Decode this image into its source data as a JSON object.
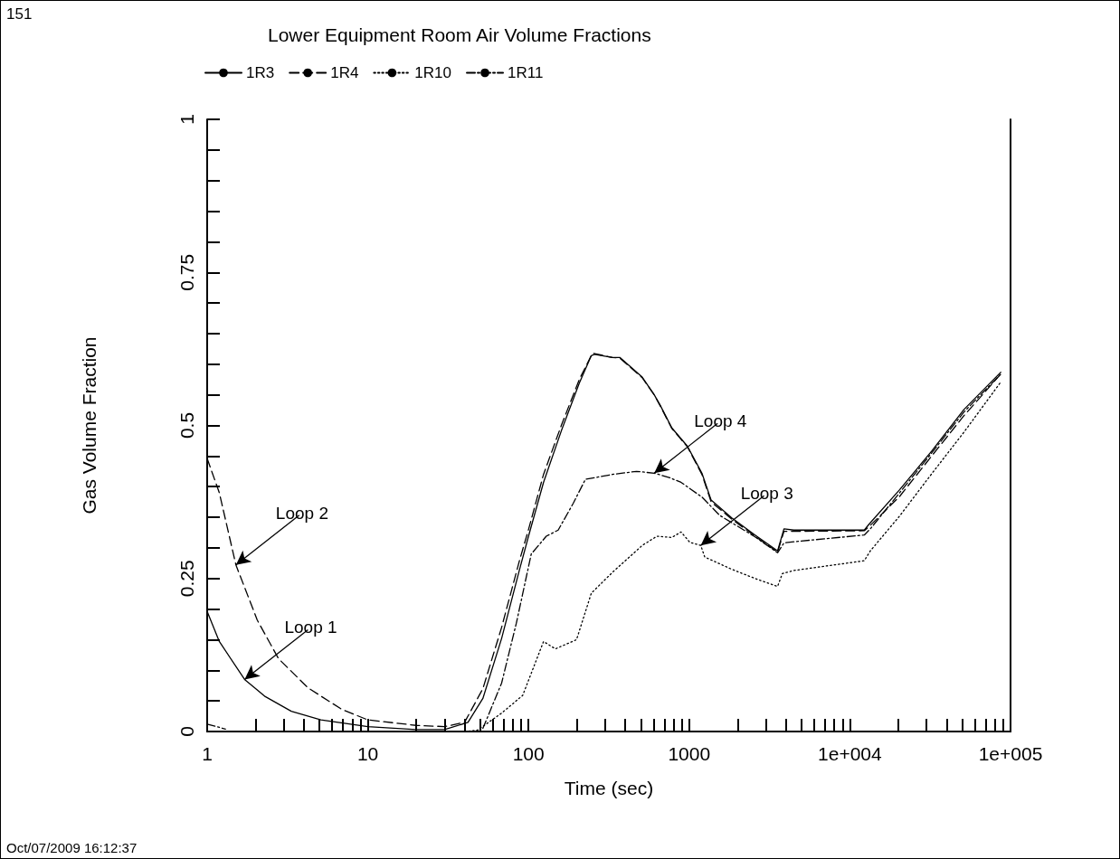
{
  "chart_data": {
    "type": "line",
    "title": "Lower Equipment Room Air Volume Fractions",
    "xlabel": "Time (sec)",
    "ylabel": "Gas Volume Fraction",
    "log": "x",
    "grid": false,
    "legend": "top left",
    "marker": "none",
    "xlim": [
      1,
      100000
    ],
    "xticks": [
      1,
      {
        "value": 2,
        "label": null
      },
      {
        "value": 3,
        "label": null
      },
      {
        "value": 4,
        "label": null
      },
      {
        "value": 5,
        "label": null
      },
      {
        "value": 6,
        "label": null
      },
      {
        "value": 7,
        "label": null
      },
      {
        "value": 8,
        "label": null
      },
      {
        "value": 9,
        "label": null
      },
      10,
      {
        "value": 20,
        "label": null
      },
      {
        "value": 30,
        "label": null
      },
      {
        "value": 40,
        "label": null
      },
      {
        "value": 50,
        "label": null
      },
      {
        "value": 60,
        "label": null
      },
      {
        "value": 70,
        "label": null
      },
      {
        "value": 80,
        "label": null
      },
      {
        "value": 90,
        "label": null
      },
      100,
      {
        "value": 200,
        "label": null
      },
      {
        "value": 300,
        "label": null
      },
      {
        "value": 400,
        "label": null
      },
      {
        "value": 500,
        "label": null
      },
      {
        "value": 600,
        "label": null
      },
      {
        "value": 700,
        "label": null
      },
      {
        "value": 800,
        "label": null
      },
      {
        "value": 900,
        "label": null
      },
      1000,
      {
        "value": 2000,
        "label": null
      },
      {
        "value": 3000,
        "label": null
      },
      {
        "value": 4000,
        "label": null
      },
      {
        "value": 5000,
        "label": null
      },
      {
        "value": 6000,
        "label": null
      },
      {
        "value": 7000,
        "label": null
      },
      {
        "value": 8000,
        "label": null
      },
      {
        "value": 9000,
        "label": null
      },
      {
        "value": 10000,
        "label": "1e+004"
      },
      {
        "value": 20000,
        "label": null
      },
      {
        "value": 30000,
        "label": null
      },
      {
        "value": 40000,
        "label": null
      },
      {
        "value": 50000,
        "label": null
      },
      {
        "value": 60000,
        "label": null
      },
      {
        "value": 70000,
        "label": null
      },
      {
        "value": 80000,
        "label": null
      },
      {
        "value": 90000,
        "label": null
      },
      {
        "value": 100000,
        "label": "1e+005"
      }
    ],
    "ylim": [
      0,
      1
    ],
    "yticks": [
      0,
      {
        "value": 0.05,
        "label": null
      },
      {
        "value": 0.1,
        "label": null
      },
      {
        "value": 0.15,
        "label": null
      },
      {
        "value": 0.2,
        "label": null
      },
      0.25,
      {
        "value": 0.3,
        "label": null
      },
      {
        "value": 0.35,
        "label": null
      },
      {
        "value": 0.4,
        "label": null
      },
      {
        "value": 0.45,
        "label": null
      },
      0.5,
      {
        "value": 0.55,
        "label": null
      },
      {
        "value": 0.6,
        "label": null
      },
      {
        "value": 0.65,
        "label": null
      },
      {
        "value": 0.7,
        "label": null
      },
      0.75,
      {
        "value": 0.8,
        "label": null
      },
      {
        "value": 0.85,
        "label": null
      },
      {
        "value": 0.9,
        "label": null
      },
      {
        "value": 0.95,
        "label": null
      },
      1
    ],
    "series": [
      {
        "name": "1R3",
        "color": "#000000",
        "line_style": "solid",
        "x": [
          1,
          1.19,
          1.71,
          2.3,
          3.34,
          5.1,
          10,
          20,
          30,
          42,
          52,
          68,
          88,
          100,
          124,
          160,
          207,
          246,
          257,
          333,
          370,
          510,
          606,
          660,
          780,
          975,
          1200,
          1370,
          1840,
          2570,
          3550,
          3890,
          4480,
          12300,
          13200,
          20400,
          32300,
          51300,
          87000
        ],
        "values": [
          0.196,
          0.147,
          0.085,
          0.057,
          0.033,
          0.019,
          0.008,
          0.003,
          0.003,
          0.015,
          0.054,
          0.152,
          0.265,
          0.319,
          0.407,
          0.491,
          0.569,
          0.614,
          0.616,
          0.611,
          0.611,
          0.579,
          0.55,
          0.533,
          0.496,
          0.466,
          0.422,
          0.378,
          0.349,
          0.321,
          0.295,
          0.331,
          0.329,
          0.329,
          0.339,
          0.395,
          0.458,
          0.526,
          0.587
        ]
      },
      {
        "name": "1R4",
        "color": "#000000",
        "line_style": "dashed",
        "x": [
          1,
          1.19,
          1.51,
          2.05,
          2.78,
          4.26,
          6.9,
          10,
          20,
          30,
          40,
          52,
          68,
          88,
          100,
          124,
          160,
          207,
          250,
          333,
          370,
          510,
          606,
          660,
          780,
          975,
          1200,
          1370,
          1840,
          2570,
          3550,
          3890,
          4480,
          12300,
          13200,
          20400,
          32300,
          51300,
          87000
        ],
        "values": [
          0.446,
          0.39,
          0.272,
          0.182,
          0.119,
          0.071,
          0.036,
          0.019,
          0.01,
          0.008,
          0.015,
          0.07,
          0.17,
          0.28,
          0.33,
          0.42,
          0.5,
          0.575,
          0.618,
          0.611,
          0.61,
          0.578,
          0.55,
          0.532,
          0.495,
          0.465,
          0.42,
          0.375,
          0.347,
          0.319,
          0.293,
          0.327,
          0.327,
          0.328,
          0.335,
          0.384,
          0.45,
          0.516,
          0.584
        ]
      },
      {
        "name": "1R10",
        "color": "#000000",
        "line_style": "dotted",
        "x": [
          40,
          48,
          68,
          92,
          124,
          147,
          199,
          246,
          333,
          510,
          630,
          780,
          890,
          1010,
          1180,
          1250,
          1840,
          2570,
          3550,
          3800,
          4480,
          12300,
          13400,
          20400,
          32300,
          51300,
          87000
        ],
        "values": [
          0,
          0.002,
          0.03,
          0.059,
          0.147,
          0.135,
          0.15,
          0.226,
          0.26,
          0.304,
          0.319,
          0.317,
          0.326,
          0.309,
          0.304,
          0.285,
          0.265,
          0.25,
          0.237,
          0.258,
          0.263,
          0.279,
          0.295,
          0.352,
          0.421,
          0.489,
          0.571
        ]
      },
      {
        "name": "1R11",
        "color": "#000000",
        "line_style": "dashdot",
        "x": [
          1,
          1.3,
          1.6,
          52,
          68,
          84,
          104,
          129,
          153,
          190,
          226,
          333,
          470,
          606,
          750,
          890,
          1200,
          1550,
          2570,
          3550,
          3890,
          4480,
          12300,
          13400,
          20400,
          32300,
          51300,
          87000
        ],
        "values": [
          0.012,
          0.004,
          null,
          0.005,
          0.079,
          0.177,
          0.29,
          0.319,
          0.329,
          0.373,
          0.412,
          0.42,
          0.425,
          0.422,
          0.415,
          0.407,
          0.383,
          0.353,
          0.318,
          0.292,
          0.308,
          0.31,
          0.321,
          0.331,
          0.39,
          0.455,
          0.522,
          0.584
        ]
      }
    ],
    "annotations": [
      "151",
      {
        "text": "Loop 1",
        "x": 1.71,
        "y": 0.085
      },
      {
        "text": "Loop 2",
        "x": 1.51,
        "y": 0.272
      },
      {
        "text": "Loop 3",
        "x": 1180,
        "y": 0.304
      },
      {
        "text": "Loop 4",
        "x": 606,
        "y": 0.422
      },
      "Oct/07/2009 16:12:37"
    ]
  }
}
